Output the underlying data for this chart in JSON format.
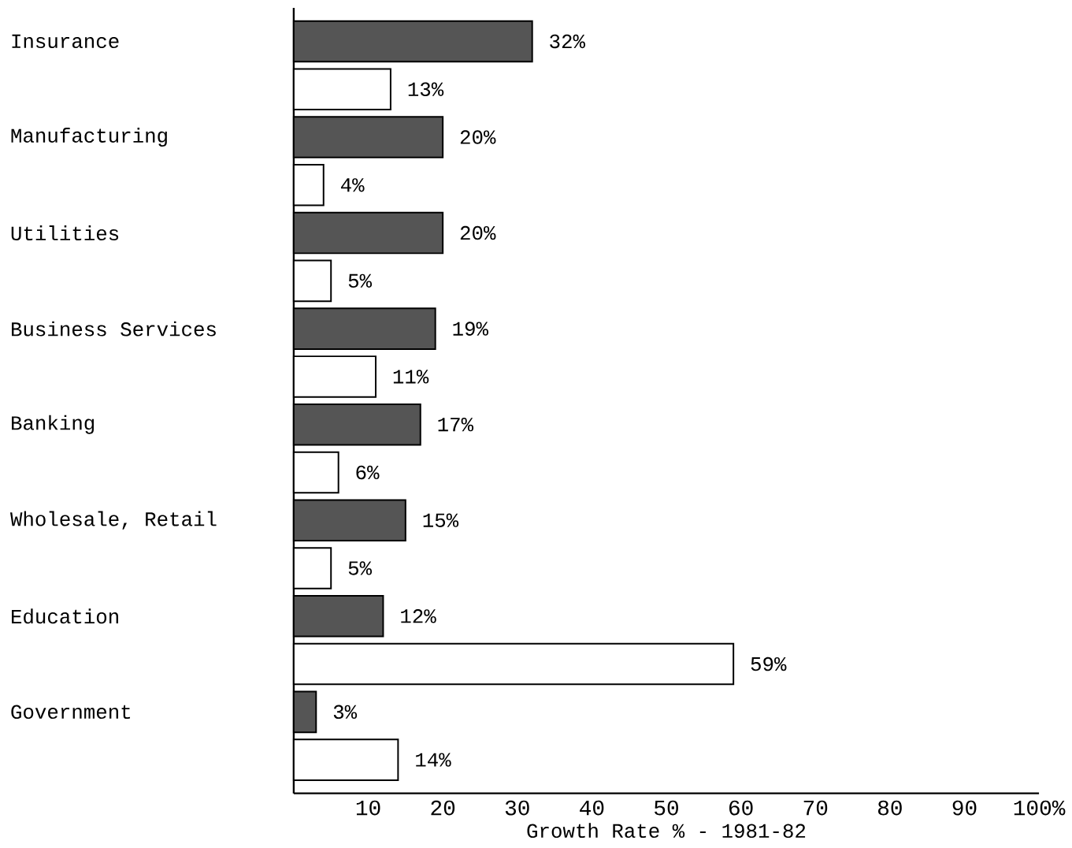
{
  "chart_data": {
    "type": "bar",
    "orientation": "horizontal",
    "categories": [
      "Insurance",
      "Manufacturing",
      "Utilities",
      "Business Services",
      "Banking",
      "Wholesale, Retail",
      "Education",
      "Government"
    ],
    "series": [
      {
        "color": "#555555",
        "values": [
          32,
          20,
          20,
          19,
          17,
          15,
          12,
          3
        ],
        "value_labels": [
          "32%",
          "20%",
          "20%",
          "19%",
          "17%",
          "15%",
          "12%",
          "3%"
        ]
      },
      {
        "color": "#ffffff",
        "values": [
          13,
          4,
          5,
          11,
          6,
          5,
          59,
          14
        ],
        "value_labels": [
          "13%",
          "4%",
          "5%",
          "11%",
          "6%",
          "5%",
          "59%",
          "14%"
        ]
      }
    ],
    "xlim": [
      0,
      100
    ],
    "xticks": [
      10,
      20,
      30,
      40,
      50,
      60,
      70,
      80,
      90,
      {
        "value": 100,
        "label": "100%"
      }
    ],
    "xlabel": "Growth Rate % - 1981-82"
  }
}
